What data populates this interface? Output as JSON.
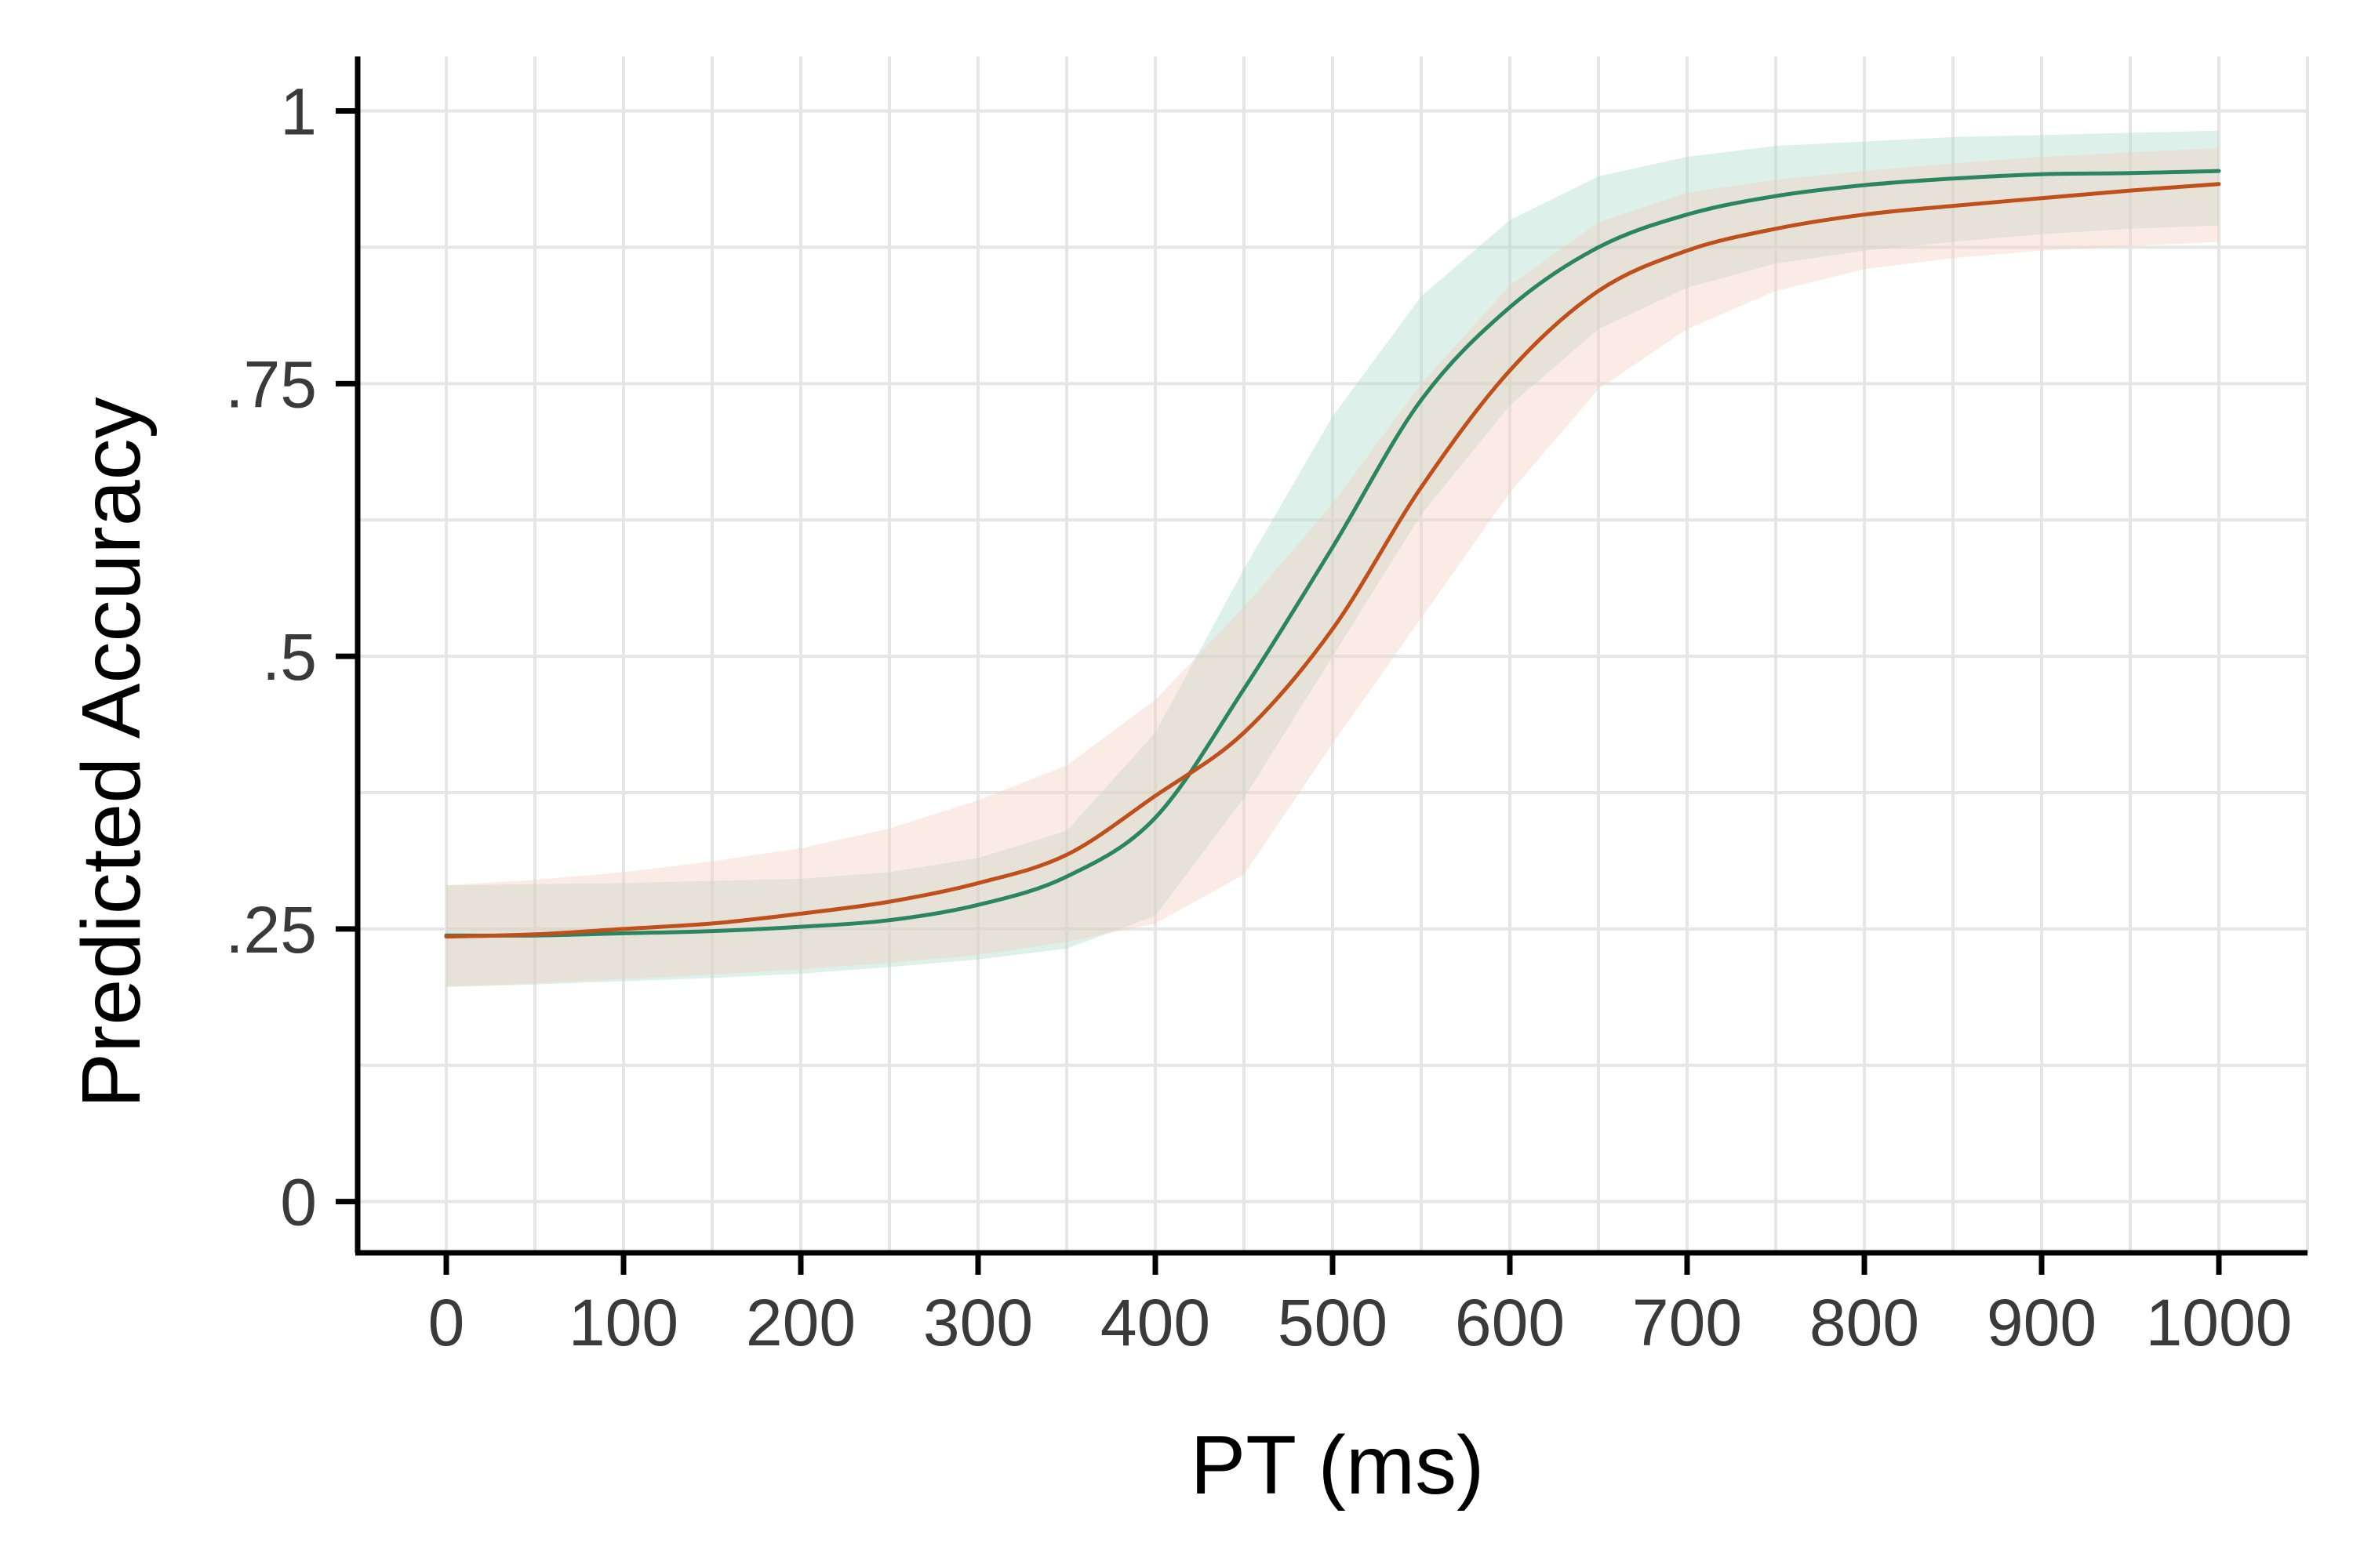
{
  "chart_data": {
    "type": "line",
    "title": "",
    "xlabel": "PT (ms)",
    "ylabel": "Predicted Accuracy",
    "xlim": [
      -50,
      1050
    ],
    "ylim": [
      -0.047,
      1.05
    ],
    "x_ticks": [
      0,
      100,
      200,
      300,
      400,
      500,
      600,
      700,
      800,
      900,
      1000
    ],
    "x_tick_labels": [
      "0",
      "100",
      "200",
      "300",
      "400",
      "500",
      "600",
      "700",
      "800",
      "900",
      "1000"
    ],
    "y_ticks": [
      0,
      0.25,
      0.5,
      0.75,
      1
    ],
    "y_tick_labels": [
      "0",
      ".25",
      ".5",
      ".75",
      "1"
    ],
    "grid": true,
    "legend": "none",
    "x": [
      0,
      50,
      100,
      150,
      200,
      250,
      300,
      350,
      400,
      450,
      500,
      550,
      600,
      650,
      700,
      750,
      800,
      850,
      900,
      950,
      1000
    ],
    "series": [
      {
        "color": "#2a8560",
        "band_color": "#a9dccb",
        "values": [
          0.244,
          0.244,
          0.246,
          0.248,
          0.252,
          0.258,
          0.272,
          0.298,
          0.352,
          0.47,
          0.6,
          0.735,
          0.82,
          0.875,
          0.905,
          0.922,
          0.932,
          0.938,
          0.942,
          0.943,
          0.945
        ],
        "lower": [
          0.197,
          0.199,
          0.202,
          0.205,
          0.209,
          0.215,
          0.222,
          0.232,
          0.262,
          0.37,
          0.5,
          0.63,
          0.73,
          0.8,
          0.838,
          0.86,
          0.872,
          0.88,
          0.887,
          0.892,
          0.895
        ],
        "upper": [
          0.29,
          0.291,
          0.292,
          0.294,
          0.296,
          0.302,
          0.315,
          0.34,
          0.43,
          0.58,
          0.72,
          0.83,
          0.9,
          0.94,
          0.958,
          0.968,
          0.972,
          0.976,
          0.978,
          0.98,
          0.982
        ]
      },
      {
        "color": "#c0501b",
        "band_color": "#f5cdbf",
        "values": [
          0.243,
          0.245,
          0.25,
          0.255,
          0.264,
          0.275,
          0.292,
          0.318,
          0.372,
          0.43,
          0.525,
          0.655,
          0.762,
          0.835,
          0.872,
          0.892,
          0.905,
          0.913,
          0.92,
          0.927,
          0.933
        ],
        "lower": [
          0.197,
          0.2,
          0.204,
          0.208,
          0.213,
          0.219,
          0.226,
          0.238,
          0.255,
          0.3,
          0.42,
          0.535,
          0.65,
          0.745,
          0.8,
          0.835,
          0.855,
          0.865,
          0.872,
          0.876,
          0.88
        ],
        "upper": [
          0.29,
          0.295,
          0.302,
          0.312,
          0.324,
          0.342,
          0.368,
          0.4,
          0.46,
          0.545,
          0.64,
          0.75,
          0.84,
          0.898,
          0.925,
          0.937,
          0.945,
          0.952,
          0.958,
          0.962,
          0.966
        ]
      }
    ]
  }
}
